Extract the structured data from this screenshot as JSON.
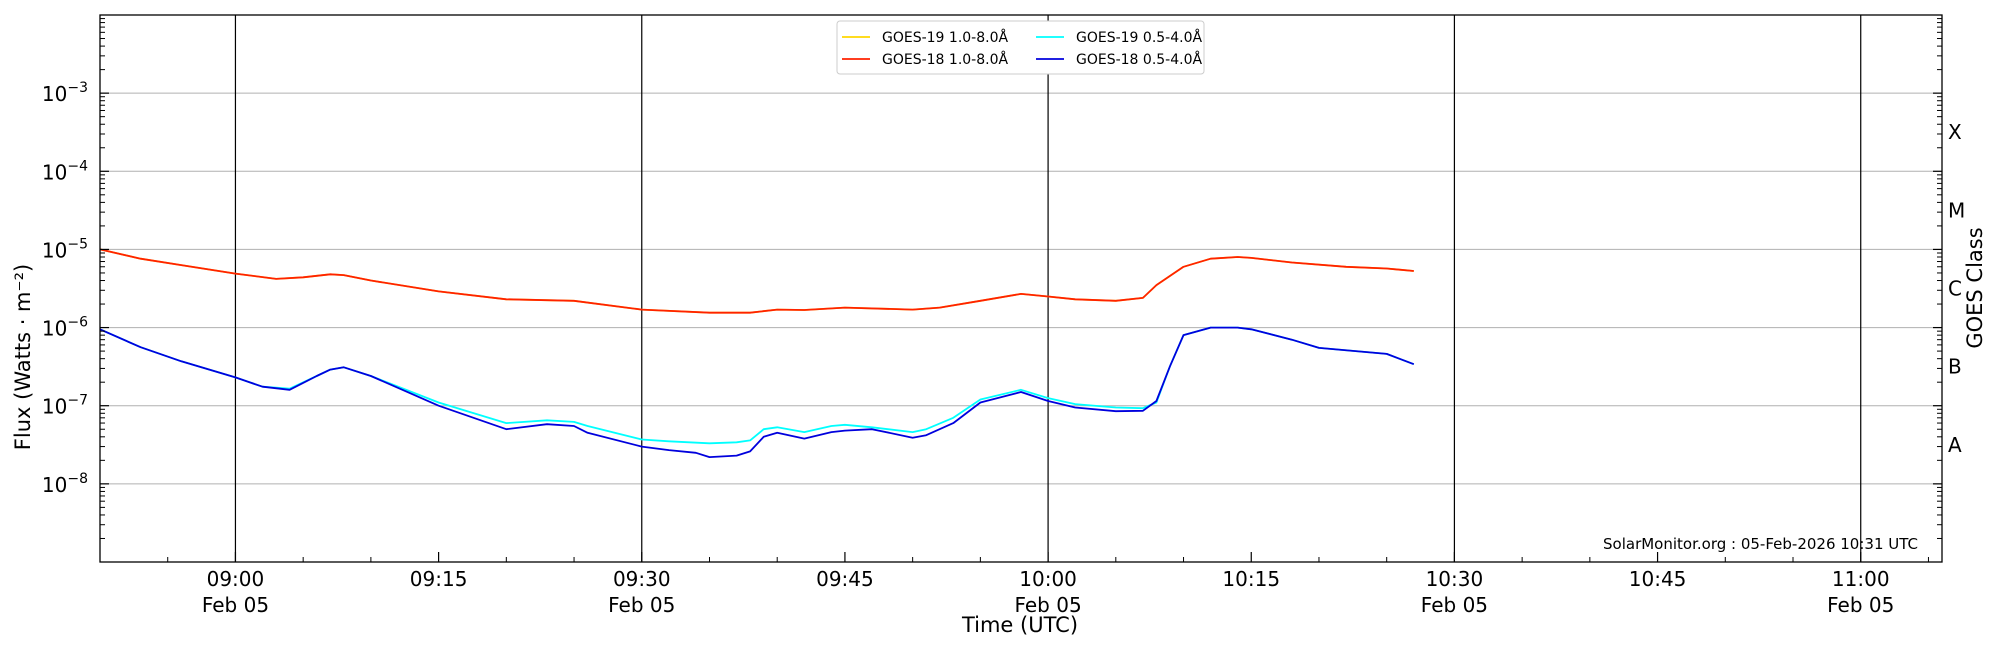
{
  "chart_data": {
    "type": "line",
    "title": "",
    "xlabel": "Time (UTC)",
    "ylabel": "Flux (Watts · m⁻²)",
    "y2label": "GOES Class",
    "yscale": "log",
    "xlim": [
      "08:50",
      "11:06"
    ],
    "ylim": [
      1e-09,
      0.01
    ],
    "grid": "horizontal at decades; vertical at 30-minute marks",
    "legend_position": "top-center",
    "x_ticks": [
      {
        "t": "09:00",
        "label": "09:00",
        "date": "Feb 05"
      },
      {
        "t": "09:15",
        "label": "09:15",
        "date": ""
      },
      {
        "t": "09:30",
        "label": "09:30",
        "date": "Feb 05"
      },
      {
        "t": "09:45",
        "label": "09:45",
        "date": ""
      },
      {
        "t": "10:00",
        "label": "10:00",
        "date": "Feb 05"
      },
      {
        "t": "10:15",
        "label": "10:15",
        "date": ""
      },
      {
        "t": "10:30",
        "label": "10:30",
        "date": "Feb 05"
      },
      {
        "t": "10:45",
        "label": "10:45",
        "date": ""
      },
      {
        "t": "11:00",
        "label": "11:00",
        "date": "Feb 05"
      }
    ],
    "vertical_lines": [
      "09:00",
      "09:30",
      "10:00",
      "10:30",
      "11:00"
    ],
    "y_ticks": [
      {
        "exp": -8,
        "base": "10",
        "sup": "−8"
      },
      {
        "exp": -7,
        "base": "10",
        "sup": "−7"
      },
      {
        "exp": -6,
        "base": "10",
        "sup": "−6"
      },
      {
        "exp": -5,
        "base": "10",
        "sup": "−5"
      },
      {
        "exp": -4,
        "base": "10",
        "sup": "−4"
      },
      {
        "exp": -3,
        "base": "10",
        "sup": "−3"
      }
    ],
    "goes_classes": [
      {
        "label": "A",
        "exp": -7.5
      },
      {
        "label": "B",
        "exp": -6.5
      },
      {
        "label": "C",
        "exp": -5.5
      },
      {
        "label": "M",
        "exp": -4.5
      },
      {
        "label": "X",
        "exp": -3.5
      }
    ],
    "series": [
      {
        "name": "GOES-19 1.0-8.0Å",
        "color": "#ffd700",
        "x": [
          "08:50",
          "08:53",
          "08:56",
          "09:00",
          "09:03",
          "09:05",
          "09:07",
          "09:08",
          "09:10",
          "09:15",
          "09:20",
          "09:25",
          "09:30",
          "09:35",
          "09:38",
          "09:40",
          "09:42",
          "09:45",
          "09:50",
          "09:52",
          "09:55",
          "09:58",
          "10:00",
          "10:02",
          "10:05",
          "10:07",
          "10:08",
          "10:10",
          "10:12",
          "10:14",
          "10:15",
          "10:18",
          "10:22",
          "10:25",
          "10:27"
        ],
        "y": [
          1e-05,
          7.6e-06,
          6.3e-06,
          4.9e-06,
          4.2e-06,
          4.4e-06,
          4.8e-06,
          4.7e-06,
          4e-06,
          2.9e-06,
          2.3e-06,
          2.2e-06,
          1.7e-06,
          1.55e-06,
          1.55e-06,
          1.7e-06,
          1.68e-06,
          1.8e-06,
          1.7e-06,
          1.8e-06,
          2.2e-06,
          2.7e-06,
          2.5e-06,
          2.3e-06,
          2.2e-06,
          2.4e-06,
          3.5e-06,
          6e-06,
          7.6e-06,
          8e-06,
          7.8e-06,
          6.8e-06,
          6e-06,
          5.7e-06,
          5.3e-06
        ]
      },
      {
        "name": "GOES-18 1.0-8.0Å",
        "color": "#ff2200",
        "x": [
          "08:50",
          "08:53",
          "08:56",
          "09:00",
          "09:03",
          "09:05",
          "09:07",
          "09:08",
          "09:10",
          "09:15",
          "09:20",
          "09:25",
          "09:30",
          "09:35",
          "09:38",
          "09:40",
          "09:42",
          "09:45",
          "09:50",
          "09:52",
          "09:55",
          "09:58",
          "10:00",
          "10:02",
          "10:05",
          "10:07",
          "10:08",
          "10:10",
          "10:12",
          "10:14",
          "10:15",
          "10:18",
          "10:22",
          "10:25",
          "10:27"
        ],
        "y": [
          1e-05,
          7.6e-06,
          6.3e-06,
          4.9e-06,
          4.2e-06,
          4.4e-06,
          4.8e-06,
          4.7e-06,
          4e-06,
          2.9e-06,
          2.3e-06,
          2.2e-06,
          1.7e-06,
          1.55e-06,
          1.55e-06,
          1.7e-06,
          1.68e-06,
          1.8e-06,
          1.7e-06,
          1.8e-06,
          2.2e-06,
          2.7e-06,
          2.5e-06,
          2.3e-06,
          2.2e-06,
          2.4e-06,
          3.5e-06,
          6e-06,
          7.6e-06,
          8e-06,
          7.8e-06,
          6.8e-06,
          6e-06,
          5.7e-06,
          5.3e-06
        ]
      },
      {
        "name": "GOES-19 0.5-4.0Å",
        "color": "#00ffff",
        "x": [
          "08:50",
          "08:53",
          "08:56",
          "09:00",
          "09:02",
          "09:04",
          "09:06",
          "09:07",
          "09:08",
          "09:10",
          "09:15",
          "09:20",
          "09:23",
          "09:25",
          "09:26",
          "09:30",
          "09:32",
          "09:35",
          "09:37",
          "09:38",
          "09:39",
          "09:40",
          "09:42",
          "09:44",
          "09:45",
          "09:47",
          "09:50",
          "09:51",
          "09:53",
          "09:55",
          "09:58",
          "10:00",
          "10:02",
          "10:05",
          "10:07",
          "10:08",
          "10:09",
          "10:10",
          "10:12",
          "10:14",
          "10:15",
          "10:18",
          "10:20",
          "10:25",
          "10:27"
        ],
        "y": [
          9.5e-07,
          5.6e-07,
          3.7e-07,
          2.3e-07,
          1.75e-07,
          1.65e-07,
          2.4e-07,
          2.9e-07,
          3.1e-07,
          2.4e-07,
          1.1e-07,
          6e-08,
          6.5e-08,
          6.2e-08,
          5.5e-08,
          3.7e-08,
          3.5e-08,
          3.3e-08,
          3.4e-08,
          3.6e-08,
          5e-08,
          5.3e-08,
          4.6e-08,
          5.5e-08,
          5.7e-08,
          5.3e-08,
          4.6e-08,
          5e-08,
          7e-08,
          1.2e-07,
          1.6e-07,
          1.25e-07,
          1.05e-07,
          9.5e-08,
          9.3e-08,
          1.1e-07,
          3.2e-07,
          8e-07,
          1e-06,
          1e-06,
          9.5e-07,
          7e-07,
          5.5e-07,
          4.6e-07,
          3.4e-07
        ]
      },
      {
        "name": "GOES-18 0.5-4.0Å",
        "color": "#0000dd",
        "x": [
          "08:50",
          "08:53",
          "08:56",
          "09:00",
          "09:02",
          "09:04",
          "09:06",
          "09:07",
          "09:08",
          "09:10",
          "09:15",
          "09:20",
          "09:23",
          "09:25",
          "09:26",
          "09:30",
          "09:32",
          "09:34",
          "09:35",
          "09:37",
          "09:38",
          "09:39",
          "09:40",
          "09:42",
          "09:44",
          "09:45",
          "09:47",
          "09:50",
          "09:51",
          "09:53",
          "09:55",
          "09:58",
          "10:00",
          "10:02",
          "10:05",
          "10:07",
          "10:08",
          "10:09",
          "10:10",
          "10:12",
          "10:14",
          "10:15",
          "10:18",
          "10:20",
          "10:25",
          "10:27"
        ],
        "y": [
          9.5e-07,
          5.6e-07,
          3.7e-07,
          2.3e-07,
          1.75e-07,
          1.6e-07,
          2.4e-07,
          2.9e-07,
          3.1e-07,
          2.4e-07,
          1e-07,
          5e-08,
          5.8e-08,
          5.5e-08,
          4.5e-08,
          3e-08,
          2.7e-08,
          2.5e-08,
          2.2e-08,
          2.3e-08,
          2.6e-08,
          4e-08,
          4.5e-08,
          3.8e-08,
          4.6e-08,
          4.8e-08,
          5e-08,
          3.9e-08,
          4.2e-08,
          6e-08,
          1.1e-07,
          1.5e-07,
          1.15e-07,
          9.5e-08,
          8.5e-08,
          8.6e-08,
          1.15e-07,
          3.2e-07,
          8e-07,
          1e-06,
          1e-06,
          9.5e-07,
          7e-07,
          5.5e-07,
          4.6e-07,
          3.4e-07
        ]
      }
    ],
    "annotation": "SolarMonitor.org : 05-Feb-2026 10:31 UTC"
  }
}
